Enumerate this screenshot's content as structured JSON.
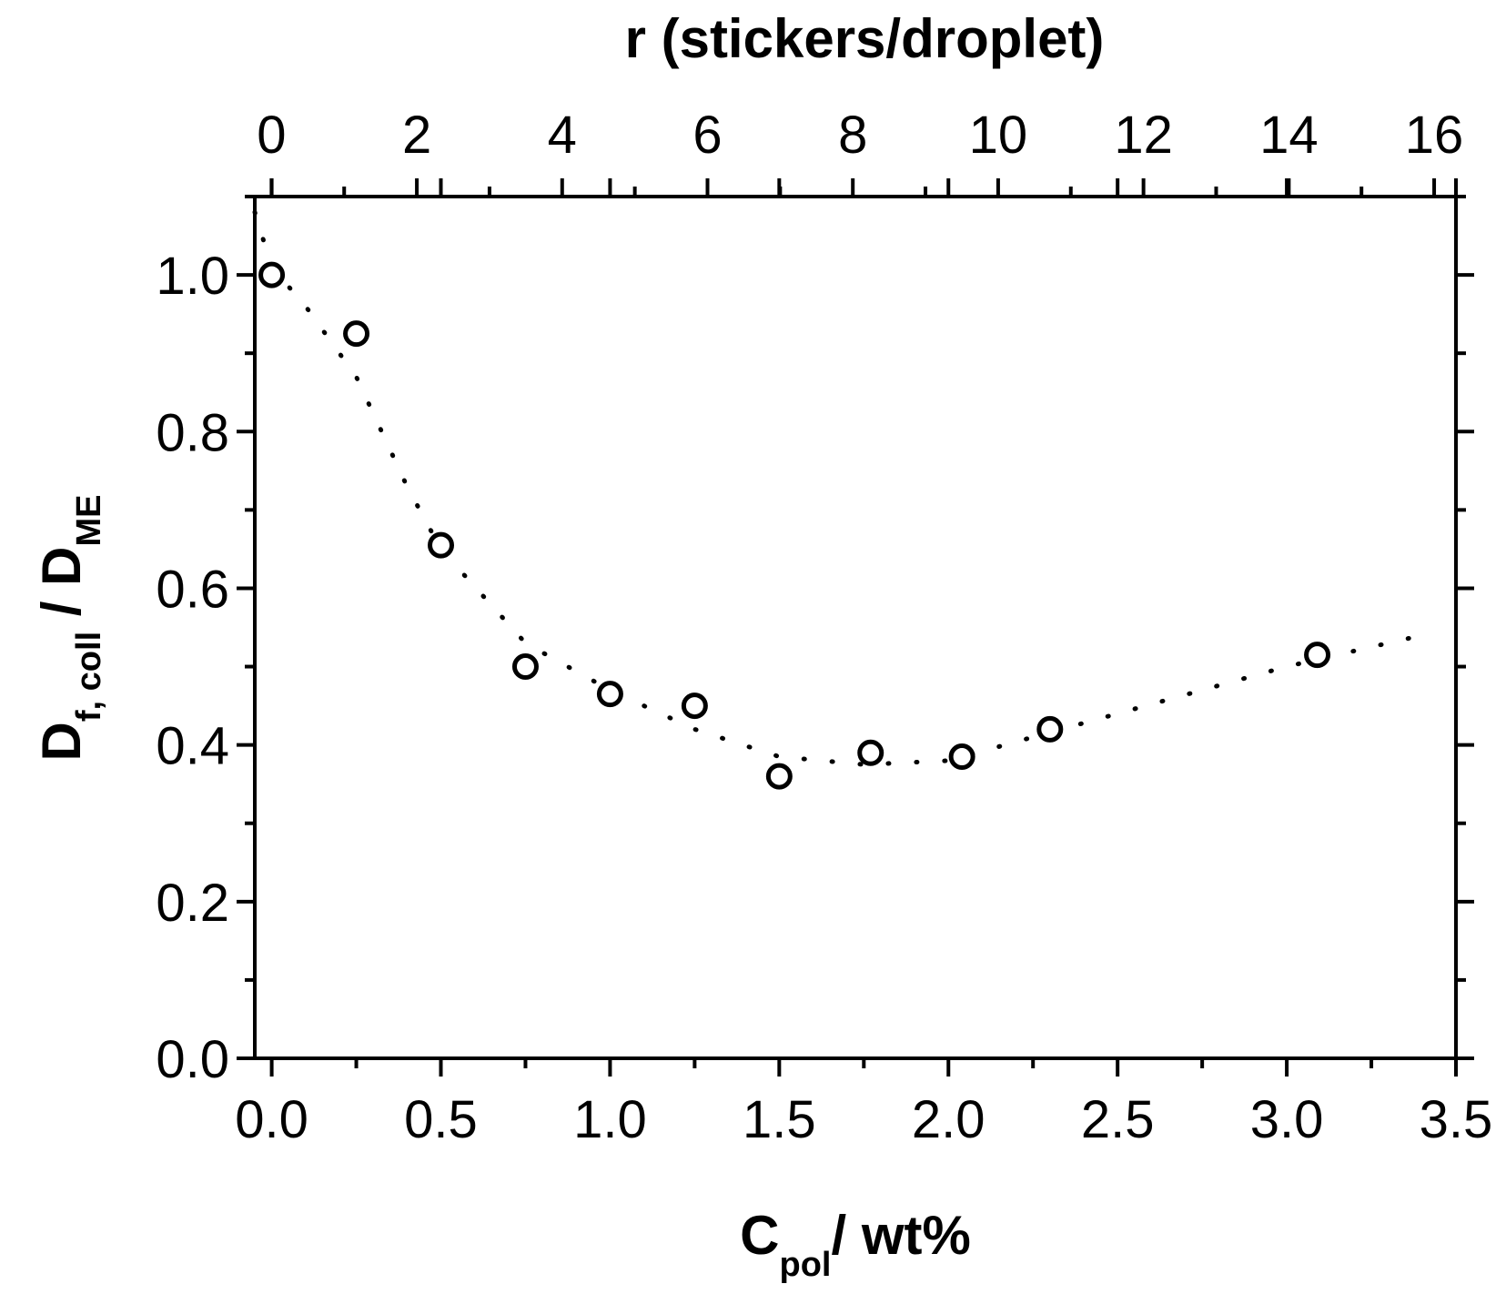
{
  "chart_data": {
    "type": "scatter",
    "title": "",
    "xlabel": {
      "main": "C",
      "sub": "pol",
      "rest": "/ wt%"
    },
    "x2label": "r (stickers/droplet)",
    "ylabel": {
      "main1": "D",
      "sub1": "f, coll",
      "mid": " / D",
      "sub2": "ME"
    },
    "xlim": [
      -0.05,
      3.5
    ],
    "ylim": [
      0.0,
      1.1
    ],
    "x2lim": [
      -0.23,
      16.3
    ],
    "xticks": [
      "0.0",
      "0.5",
      "1.0",
      "1.5",
      "2.0",
      "2.5",
      "3.0",
      "3.5"
    ],
    "x2ticks": [
      "0",
      "2",
      "4",
      "6",
      "8",
      "10",
      "12",
      "14",
      "16"
    ],
    "yticks": [
      "0.0",
      "0.2",
      "0.4",
      "0.6",
      "0.8",
      "1.0"
    ],
    "grid": false,
    "series": [
      {
        "marker": "open-circle",
        "x": [
          0.0,
          0.25,
          0.5,
          0.75,
          1.0,
          1.25,
          1.5,
          1.77,
          2.04,
          2.3,
          3.09
        ],
        "y": [
          1.0,
          0.925,
          0.655,
          0.5,
          0.465,
          0.45,
          0.36,
          0.39,
          0.385,
          0.42,
          0.515
        ]
      },
      {
        "style": "dotted-line",
        "x": [
          -0.05,
          0.0,
          0.1,
          0.25,
          0.4,
          0.5,
          0.75,
          1.0,
          1.25,
          1.5,
          1.75,
          2.0,
          2.25,
          2.5,
          2.75,
          3.0,
          3.25,
          3.4
        ],
        "y": [
          1.08,
          1.01,
          0.96,
          0.87,
          0.73,
          0.65,
          0.53,
          0.47,
          0.42,
          0.385,
          0.375,
          0.38,
          0.41,
          0.44,
          0.47,
          0.5,
          0.525,
          0.54
        ]
      }
    ]
  }
}
